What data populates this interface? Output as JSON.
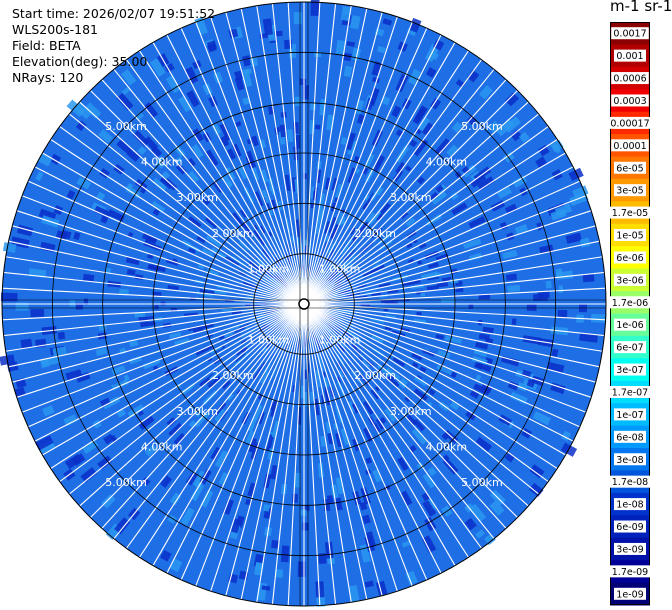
{
  "header": {
    "start_time": "Start time: 2026/02/07 19:51:52",
    "instrument": "WLS200s-181",
    "field": "Field: BETA",
    "elevation": "Elevation(deg): 35.00",
    "nrays": "NRays: 120"
  },
  "chart_data": {
    "type": "heatmap",
    "projection": "polar (PPI)",
    "field": "BETA",
    "n_rays": 120,
    "range_rings_km": [
      1.0,
      2.0,
      3.0,
      4.0,
      5.0
    ],
    "range_ring_labels": [
      "1.00km",
      "2.00km",
      "3.00km",
      "4.00km",
      "5.00km"
    ],
    "max_range_km": 6.0,
    "grid": true,
    "colorbar": {
      "title": "m-1 sr-1",
      "position": "right",
      "scale": "log",
      "tick_labels": [
        "0.0017",
        "0.001",
        "0.0006",
        "0.0003",
        "0.00017",
        "0.0001",
        "6e-05",
        "3e-05",
        "1.7e-05",
        "1e-05",
        "6e-06",
        "3e-06",
        "1.7e-06",
        "1e-06",
        "6e-07",
        "3e-07",
        "1.7e-07",
        "1e-07",
        "6e-08",
        "3e-08",
        "1.7e-08",
        "1e-08",
        "6e-09",
        "3e-09",
        "1.7e-09",
        "1e-09"
      ],
      "colors": [
        "#8b0000",
        "#b00000",
        "#d40000",
        "#f00000",
        "#ff2a00",
        "#ff5500",
        "#ff7700",
        "#ff9900",
        "#ffbb00",
        "#ffdd00",
        "#ffff00",
        "#ccff33",
        "#99ff66",
        "#66ff99",
        "#33ffcc",
        "#00ffee",
        "#00ddff",
        "#00bbff",
        "#0099ff",
        "#0077ee",
        "#0055dd",
        "#0033cc",
        "#0022bb",
        "#0011aa",
        "#000099",
        "#000077"
      ]
    },
    "dominant_values": "1e-08 to 6e-08",
    "colors": {
      "background_field": "#1e6ee6",
      "dark_patch": "#0a2fc8",
      "light_patch": "#2a98f0",
      "ray_gap": "#ffffff"
    }
  }
}
